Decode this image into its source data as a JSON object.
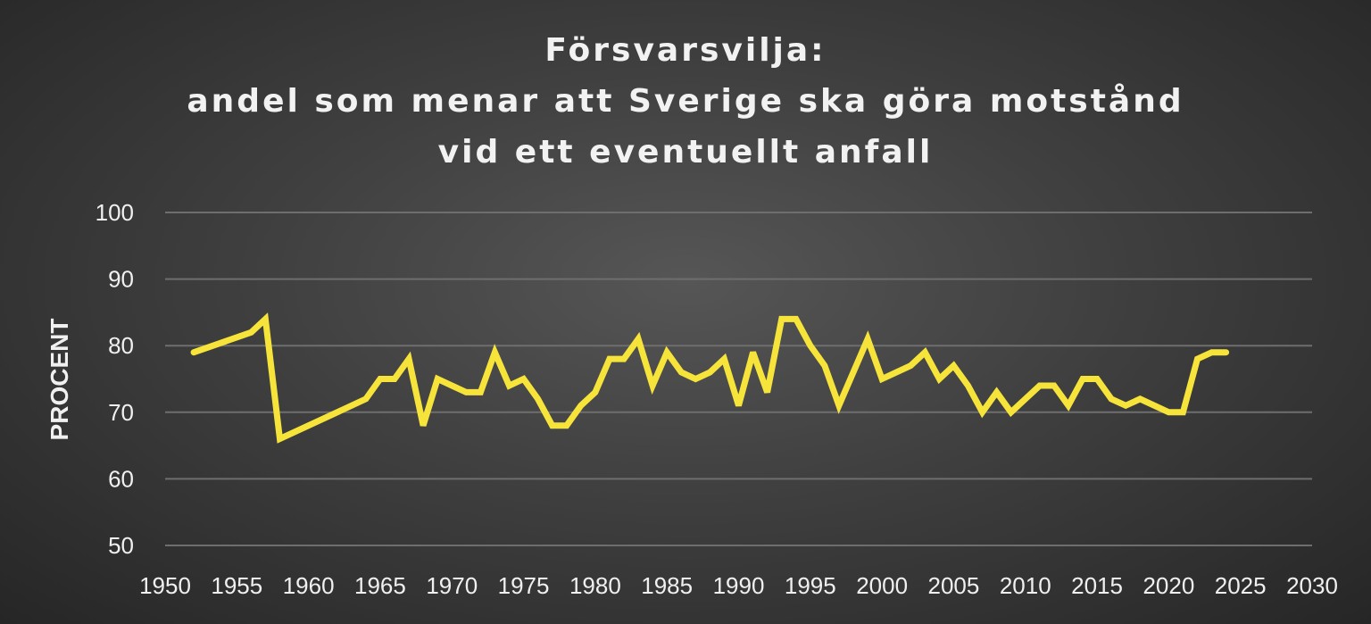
{
  "chart_data": {
    "type": "line",
    "title_lines": [
      "Försvarsvilja:",
      "andel som menar att Sverige ska göra motstånd",
      "vid ett eventuellt anfall"
    ],
    "xlabel": "",
    "ylabel": "PROCENT",
    "xlim": [
      1950,
      2030
    ],
    "ylim": [
      50,
      100
    ],
    "x_ticks": [
      "1950",
      "1955",
      "1960",
      "1965",
      "1970",
      "1975",
      "1980",
      "1985",
      "1990",
      "1995",
      "2000",
      "2005",
      "2010",
      "2015",
      "2020",
      "2025",
      "2030"
    ],
    "y_ticks": [
      "50",
      "60",
      "70",
      "80",
      "90",
      "100"
    ],
    "grid": true,
    "legend": "none",
    "series": [
      {
        "color": "#f7e43a",
        "x": [
          1952,
          1956,
          1957,
          1958,
          1964,
          1965,
          1966,
          1967,
          1968,
          1969,
          1971,
          1972,
          1973,
          1974,
          1975,
          1976,
          1977,
          1978,
          1979,
          1980,
          1981,
          1982,
          1983,
          1984,
          1985,
          1986,
          1987,
          1988,
          1989,
          1990,
          1991,
          1992,
          1993,
          1994,
          1995,
          1996,
          1997,
          1999,
          2000,
          2002,
          2003,
          2004,
          2005,
          2006,
          2007,
          2008,
          2009,
          2011,
          2012,
          2013,
          2014,
          2015,
          2016,
          2017,
          2018,
          2020,
          2021,
          2022,
          2023,
          2024
        ],
        "y": [
          79,
          82,
          84,
          66,
          72,
          75,
          75,
          78,
          68,
          75,
          73,
          73,
          79,
          74,
          75,
          72,
          68,
          68,
          71,
          73,
          78,
          78,
          81,
          74,
          79,
          76,
          75,
          76,
          78,
          71,
          79,
          73,
          84,
          84,
          80,
          77,
          71,
          81,
          75,
          77,
          79,
          75,
          77,
          74,
          70,
          73,
          70,
          74,
          74,
          71,
          75,
          75,
          72,
          71,
          72,
          70,
          70,
          78,
          79,
          79
        ]
      }
    ]
  }
}
